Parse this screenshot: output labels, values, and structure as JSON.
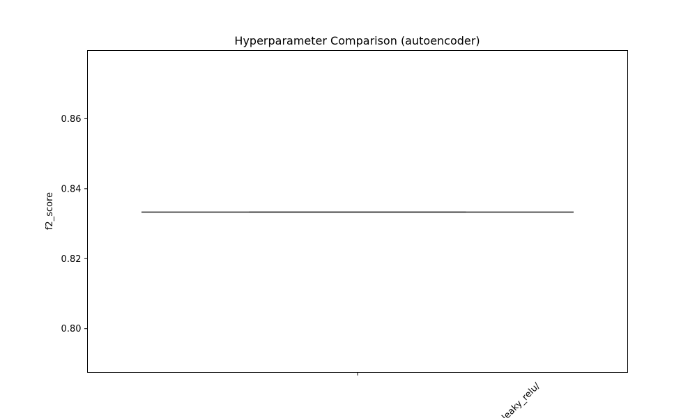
{
  "chart_data": {
    "type": "box",
    "title": "Hyperparameter Comparison (autoencoder)",
    "xlabel": "",
    "ylabel": "f2_score",
    "categories": [
      "leaky_relu/"
    ],
    "series": [
      {
        "values": [
          {
            "category": "leaky_relu/",
            "min": 0.8333,
            "q1": 0.8333,
            "median": 0.8333,
            "q3": 0.8333,
            "max": 0.8333
          }
        ]
      }
    ],
    "ylim": [
      0.7875,
      0.8795
    ],
    "yticks": [
      0.8,
      0.82,
      0.84,
      0.86
    ],
    "ytick_labels": [
      "0.80",
      "0.82",
      "0.84",
      "0.86"
    ],
    "grid": false,
    "legend": "none",
    "colors": {
      "box_line": "#3f3f3f",
      "frame": "#000000"
    }
  }
}
